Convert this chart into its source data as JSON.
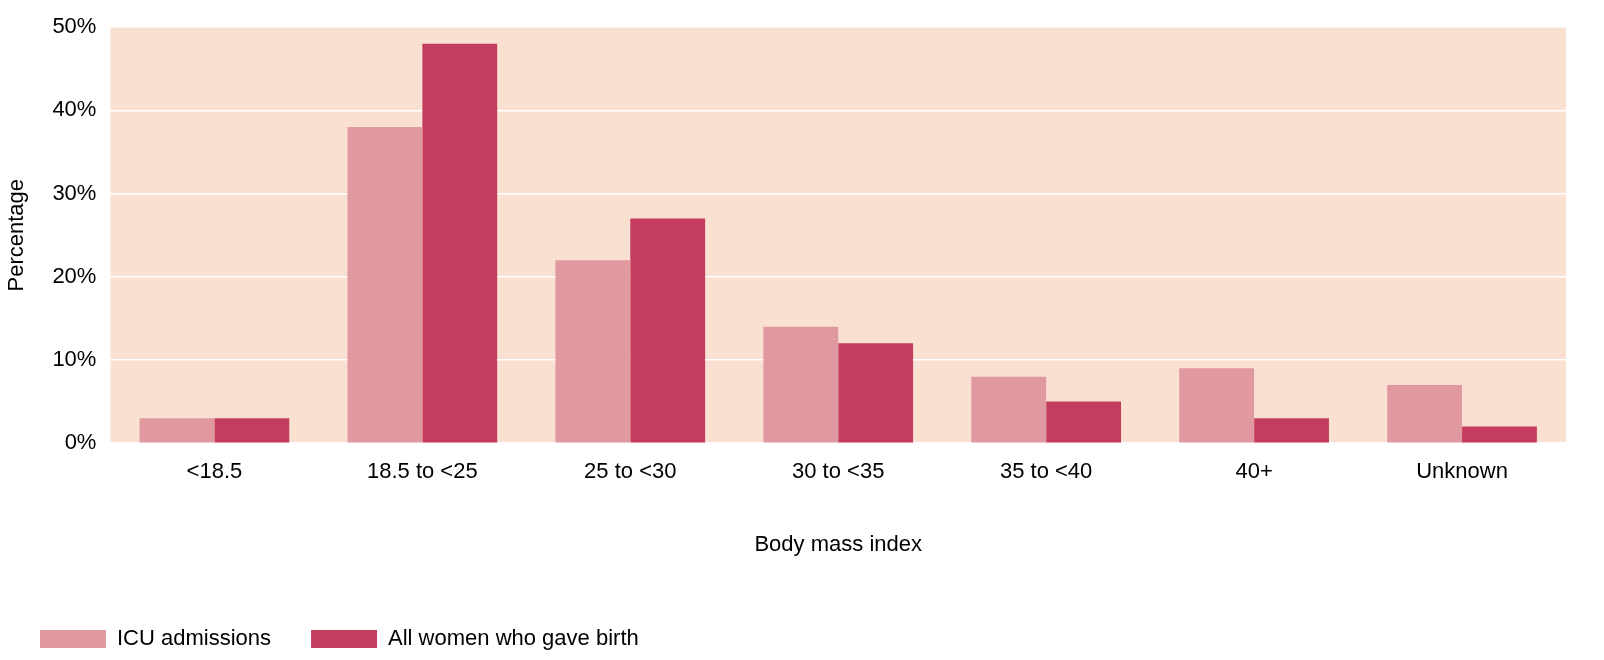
{
  "chart_data": {
    "type": "bar",
    "xlabel": "Body mass index",
    "ylabel": "Percentage",
    "categories": [
      "<18.5",
      "18.5 to <25",
      "25 to <30",
      "30 to <35",
      "35 to <40",
      "40+",
      "Unknown"
    ],
    "series": [
      {
        "name": "ICU admissions",
        "color": "#e0999f",
        "values": [
          3,
          38,
          22,
          14,
          8,
          9,
          7
        ]
      },
      {
        "name": "All women who gave birth",
        "color": "#c43d60",
        "values": [
          3,
          48,
          27,
          12,
          5,
          3,
          2
        ]
      }
    ],
    "ylim": [
      0,
      50
    ],
    "yticks": [
      {
        "value": 0,
        "label": "0%"
      },
      {
        "value": 10,
        "label": "10%"
      },
      {
        "value": 20,
        "label": "20%"
      },
      {
        "value": 30,
        "label": "30%"
      },
      {
        "value": 40,
        "label": "40%"
      },
      {
        "value": 50,
        "label": "50%"
      }
    ],
    "grid": "y",
    "legend": "bottom left"
  }
}
